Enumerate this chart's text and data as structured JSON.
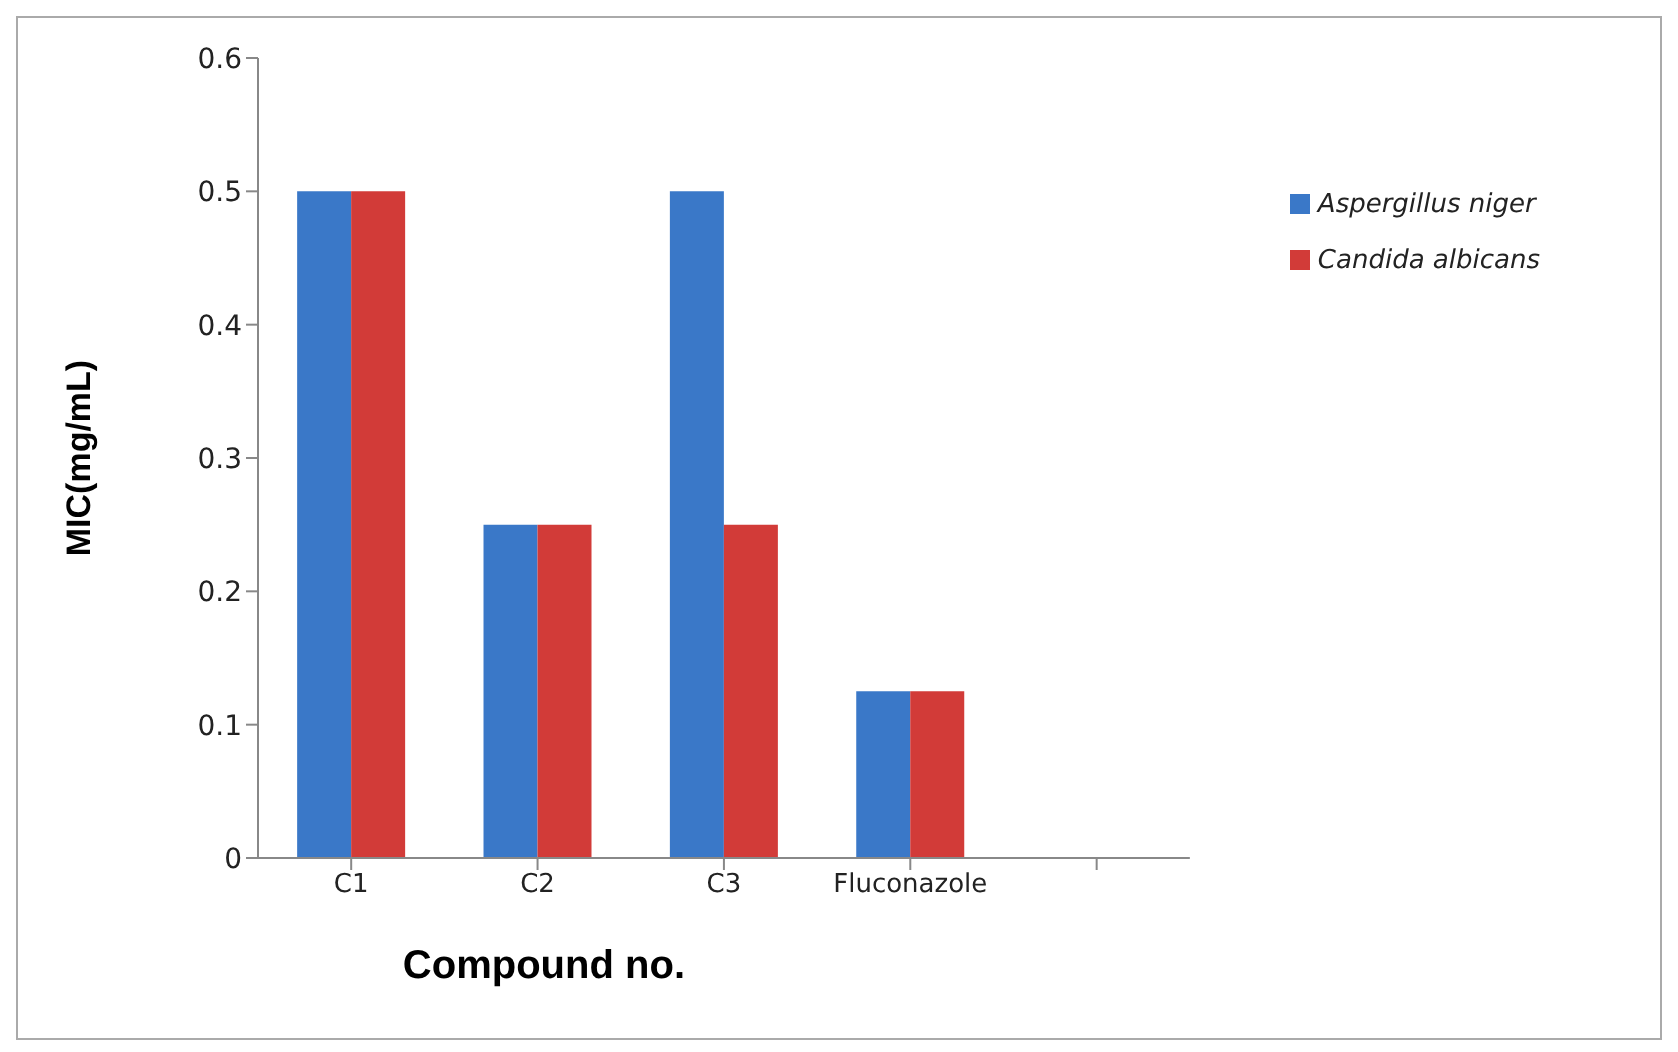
{
  "chart_data": {
    "type": "bar",
    "xlabel": "Compound no.",
    "ylabel": "MIC(mg/mL)",
    "categories": [
      "C1",
      "C2",
      "C3",
      "Fluconazole",
      null
    ],
    "series": [
      {
        "name": "Aspergillus niger",
        "color": "#3a78c8",
        "values": [
          0.5,
          0.25,
          0.5,
          0.125,
          null
        ]
      },
      {
        "name": "Candida albicans",
        "color": "#d23b38",
        "values": [
          0.5,
          0.25,
          0.25,
          0.125,
          null
        ]
      }
    ],
    "ylim": [
      0,
      0.6
    ],
    "yticks": [
      0,
      0.1,
      0.2,
      0.3,
      0.4,
      0.5,
      0.6
    ],
    "grid": false,
    "legend": "top right"
  }
}
